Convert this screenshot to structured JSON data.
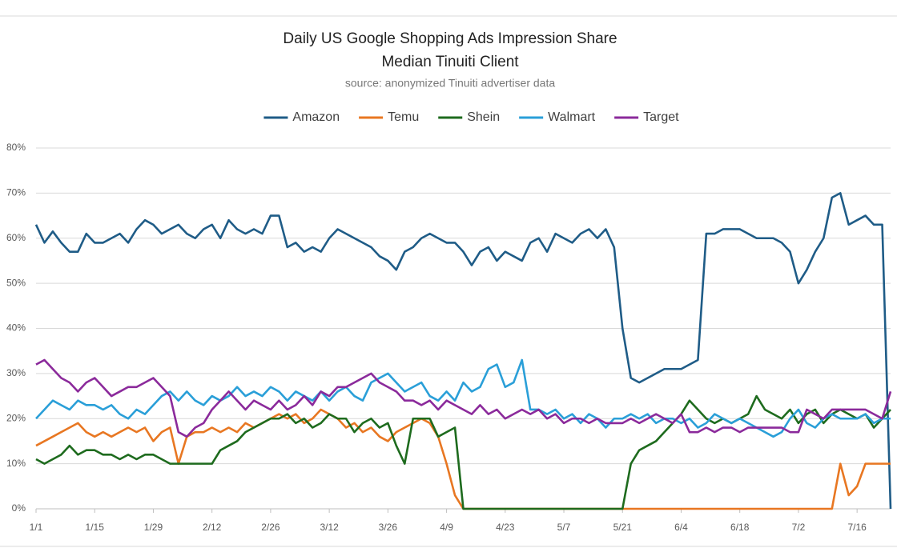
{
  "chart_data": {
    "type": "line",
    "title": "Daily US Google Shopping Ads Impression Share",
    "subtitle": "Median Tinuiti Client",
    "note": "source: anonymized Tinuiti advertiser data",
    "x": [
      0,
      2,
      4,
      6,
      8,
      10,
      12,
      14,
      16,
      18,
      20,
      22,
      24,
      26,
      28,
      30,
      32,
      34,
      36,
      38,
      40,
      42,
      44,
      46,
      48,
      50,
      52,
      54,
      56,
      58,
      60,
      62,
      64,
      66,
      68,
      70,
      72,
      74,
      76,
      78,
      80,
      82,
      84,
      86,
      88,
      90,
      92,
      94,
      96,
      98,
      100,
      102,
      104,
      106,
      108,
      110,
      112,
      114,
      116,
      118,
      120,
      122,
      124,
      126,
      128,
      130,
      132,
      134,
      136,
      138,
      140,
      142,
      144,
      146,
      148,
      150,
      152,
      154,
      156,
      158,
      160,
      162,
      164,
      166,
      168,
      170,
      172,
      174,
      176,
      178,
      180,
      182,
      184,
      186,
      188,
      190,
      192,
      194,
      196,
      198,
      200,
      202,
      204
    ],
    "xlim": [
      0,
      204
    ],
    "xticks": [
      {
        "value": 0,
        "label": "1/1"
      },
      {
        "value": 14,
        "label": "1/15"
      },
      {
        "value": 28,
        "label": "1/29"
      },
      {
        "value": 42,
        "label": "2/12"
      },
      {
        "value": 56,
        "label": "2/26"
      },
      {
        "value": 70,
        "label": "3/12"
      },
      {
        "value": 84,
        "label": "3/26"
      },
      {
        "value": 98,
        "label": "4/9"
      },
      {
        "value": 112,
        "label": "4/23"
      },
      {
        "value": 126,
        "label": "5/7"
      },
      {
        "value": 140,
        "label": "5/21"
      },
      {
        "value": 154,
        "label": "6/4"
      },
      {
        "value": 168,
        "label": "6/18"
      },
      {
        "value": 182,
        "label": "7/2"
      },
      {
        "value": 196,
        "label": "7/16"
      }
    ],
    "ylim": [
      0,
      80
    ],
    "yticks": [
      {
        "value": 0,
        "label": "0%"
      },
      {
        "value": 10,
        "label": "10%"
      },
      {
        "value": 20,
        "label": "20%"
      },
      {
        "value": 30,
        "label": "30%"
      },
      {
        "value": 40,
        "label": "40%"
      },
      {
        "value": 50,
        "label": "50%"
      },
      {
        "value": 60,
        "label": "60%"
      },
      {
        "value": 70,
        "label": "70%"
      },
      {
        "value": 80,
        "label": "80%"
      }
    ],
    "grid": true,
    "legend": "top",
    "series": [
      {
        "name": "Amazon",
        "color": "#1f5c87",
        "values": [
          63,
          59,
          61.5,
          59,
          57,
          57,
          61,
          59,
          59,
          60,
          61,
          59,
          62,
          64,
          63,
          61,
          62,
          63,
          61,
          60,
          62,
          63,
          60,
          64,
          62,
          61,
          62,
          61,
          65,
          65,
          58,
          59,
          57,
          58,
          57,
          60,
          62,
          61,
          60,
          59,
          58,
          56,
          55,
          53,
          57,
          58,
          60,
          61,
          60,
          59,
          59,
          57,
          54,
          57,
          58,
          55,
          57,
          56,
          55,
          59,
          60,
          57,
          61,
          60,
          59,
          61,
          62,
          60,
          62,
          58,
          40,
          29,
          28,
          29,
          30,
          31,
          31,
          31,
          32,
          33,
          61,
          61,
          62,
          62,
          62,
          61,
          60,
          60,
          60,
          59,
          57,
          50,
          53,
          57,
          60,
          69,
          70,
          63,
          64,
          65,
          63,
          63,
          0
        ]
      },
      {
        "name": "Temu",
        "color": "#e87722",
        "values": [
          14,
          15,
          16,
          17,
          18,
          19,
          17,
          16,
          17,
          16,
          17,
          18,
          17,
          18,
          15,
          17,
          18,
          10,
          16,
          17,
          17,
          18,
          17,
          18,
          17,
          19,
          18,
          19,
          20,
          21,
          20,
          21,
          19,
          20,
          22,
          21,
          20,
          18,
          19,
          17,
          18,
          16,
          15,
          17,
          18,
          19,
          20,
          19,
          16,
          10,
          3,
          0,
          0,
          0,
          0,
          0,
          0,
          0,
          0,
          0,
          0,
          0,
          0,
          0,
          0,
          0,
          0,
          0,
          0,
          0,
          0,
          0,
          0,
          0,
          0,
          0,
          0,
          0,
          0,
          0,
          0,
          0,
          0,
          0,
          0,
          0,
          0,
          0,
          0,
          0,
          0,
          0,
          0,
          0,
          0,
          0,
          10,
          3,
          5,
          10,
          10,
          10,
          10
        ]
      },
      {
        "name": "Shein",
        "color": "#1e6b1e",
        "values": [
          11,
          10,
          11,
          12,
          14,
          12,
          13,
          13,
          12,
          12,
          11,
          12,
          11,
          12,
          12,
          11,
          10,
          10,
          10,
          10,
          10,
          10,
          13,
          14,
          15,
          17,
          18,
          19,
          20,
          20,
          21,
          19,
          20,
          18,
          19,
          21,
          20,
          20,
          17,
          19,
          20,
          18,
          19,
          14,
          10,
          20,
          20,
          20,
          16,
          17,
          18,
          0,
          0,
          0,
          0,
          0,
          0,
          0,
          0,
          0,
          0,
          0,
          0,
          0,
          0,
          0,
          0,
          0,
          0,
          0,
          0,
          10,
          13,
          14,
          15,
          17,
          19,
          21,
          24,
          22,
          20,
          19,
          20,
          19,
          20,
          21,
          25,
          22,
          21,
          20,
          22,
          19,
          21,
          22,
          19,
          21,
          22,
          21,
          20,
          21,
          18,
          20,
          22
        ]
      },
      {
        "name": "Walmart",
        "color": "#2a9fd8",
        "values": [
          20,
          22,
          24,
          23,
          22,
          24,
          23,
          23,
          22,
          23,
          21,
          20,
          22,
          21,
          23,
          25,
          26,
          24,
          26,
          24,
          23,
          25,
          24,
          25,
          27,
          25,
          26,
          25,
          27,
          26,
          24,
          26,
          25,
          24,
          26,
          24,
          26,
          27,
          25,
          24,
          28,
          29,
          30,
          28,
          26,
          27,
          28,
          25,
          24,
          26,
          24,
          28,
          26,
          27,
          31,
          32,
          27,
          28,
          33,
          22,
          22,
          21,
          22,
          20,
          21,
          19,
          21,
          20,
          18,
          20,
          20,
          21,
          20,
          21,
          19,
          20,
          20,
          19,
          20,
          18,
          19,
          21,
          20,
          19,
          20,
          19,
          18,
          17,
          16,
          17,
          20,
          22,
          19,
          18,
          20,
          21,
          20,
          20,
          20,
          21,
          19,
          20,
          20
        ]
      },
      {
        "name": "Target",
        "color": "#8b2a9b",
        "values": [
          32,
          33,
          31,
          29,
          28,
          26,
          28,
          29,
          27,
          25,
          26,
          27,
          27,
          28,
          29,
          27,
          25,
          17,
          16,
          18,
          19,
          22,
          24,
          26,
          24,
          22,
          24,
          23,
          22,
          24,
          22,
          23,
          25,
          23,
          26,
          25,
          27,
          27,
          28,
          29,
          30,
          28,
          27,
          26,
          24,
          24,
          23,
          24,
          22,
          24,
          23,
          22,
          21,
          23,
          21,
          22,
          20,
          21,
          22,
          21,
          22,
          20,
          21,
          19,
          20,
          20,
          19,
          20,
          19,
          19,
          19,
          20,
          19,
          20,
          21,
          20,
          19,
          21,
          17,
          17,
          18,
          17,
          18,
          18,
          17,
          18,
          18,
          18,
          18,
          18,
          17,
          17,
          22,
          21,
          20,
          22,
          22,
          22,
          22,
          22,
          21,
          20,
          26
        ]
      }
    ]
  }
}
